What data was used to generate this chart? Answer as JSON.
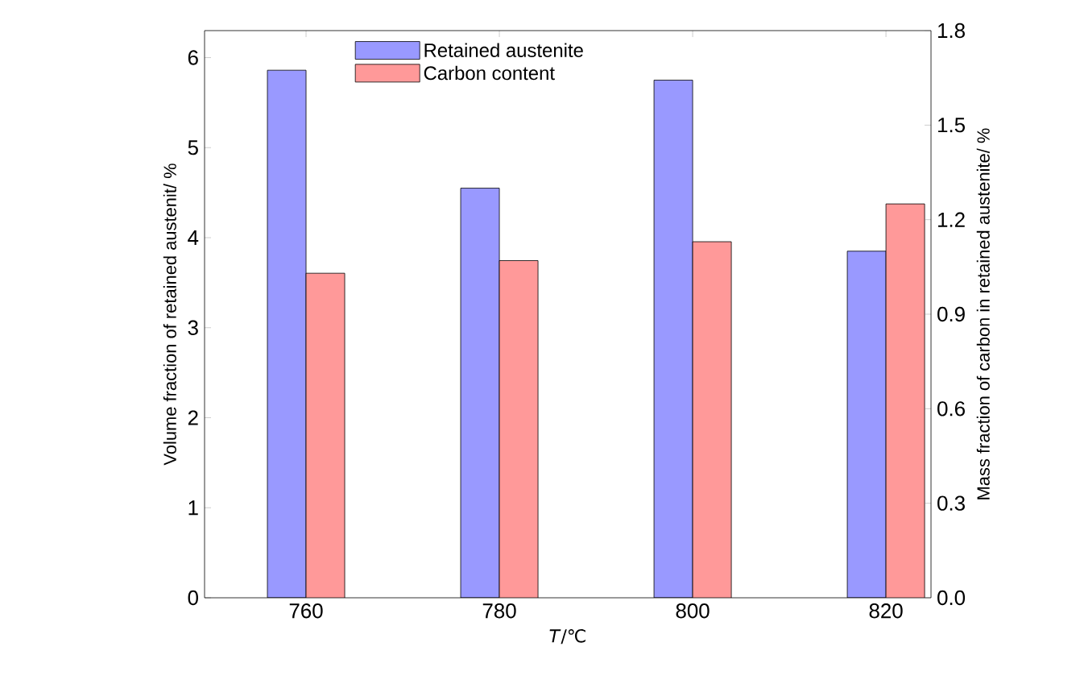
{
  "chart_data": {
    "type": "bar",
    "xlabel": "*T*/℃",
    "ylabel": "Volume fraction of retained austenit/ %",
    "y2label": "Mass fraction of carbon in retained austenite/ %",
    "categories": [
      "760",
      "780",
      "800",
      "820"
    ],
    "series": [
      {
        "name": "Retained austenite",
        "color": "#9999ff",
        "values": [
          5.86,
          4.55,
          5.75,
          3.85
        ]
      },
      {
        "name": "Carbon content",
        "color": "#ff9999",
        "axis": "y2",
        "values": [
          1.03,
          1.07,
          1.13,
          1.25
        ]
      }
    ],
    "ylim": [
      0,
      6.3
    ],
    "yticks": [
      0,
      1,
      2,
      3,
      4,
      5,
      6
    ],
    "y2lim": [
      0,
      1.8
    ],
    "y2ticks": [
      {
        "value": 0,
        "label": "0.0"
      },
      {
        "value": 0.3,
        "label": "0.3"
      },
      {
        "value": 0.6,
        "label": "0.6"
      },
      {
        "value": 0.9,
        "label": "0.9"
      },
      {
        "value": 1.2,
        "label": "1.2"
      },
      {
        "value": 1.5,
        "label": "1.5"
      },
      {
        "value": 1.8,
        "label": "1.8"
      }
    ],
    "legend": "top left",
    "grid": false
  }
}
